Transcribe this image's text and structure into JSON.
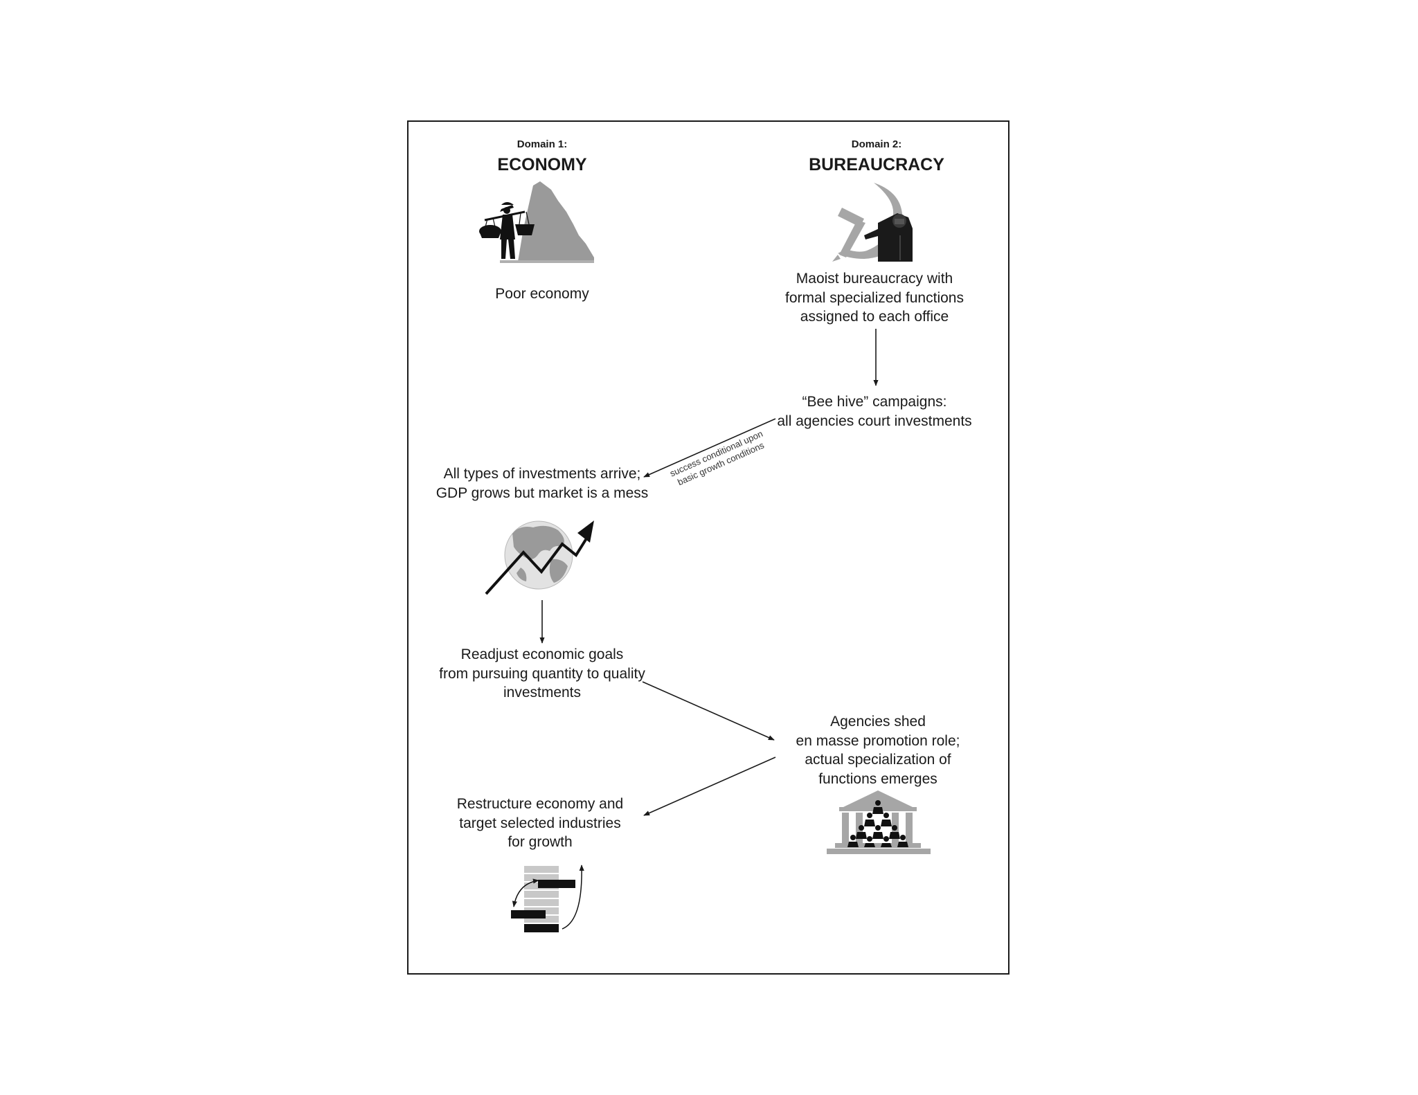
{
  "domain1": {
    "label": "Domain 1:",
    "title": "ECONOMY"
  },
  "domain2": {
    "label": "Domain 2:",
    "title": "BUREAUCRACY"
  },
  "nodes": {
    "poor_economy": [
      "Poor economy"
    ],
    "maoist_bureaucracy": [
      "Maoist bureaucracy with",
      "formal specialized functions",
      "assigned to each office"
    ],
    "bee_hive": [
      "“Bee hive” campaigns:",
      "all agencies court investments"
    ],
    "investments_arrive": [
      "All types of investments arrive;",
      "GDP grows but market is a mess"
    ],
    "readjust_goals": [
      "Readjust economic goals",
      "from pursuing quantity to quality",
      "investments"
    ],
    "agencies_shed": [
      "Agencies shed",
      "en masse promotion role;",
      "actual specialization of",
      "functions emerges"
    ],
    "restructure": [
      "Restructure economy and",
      "target selected industries",
      "for growth"
    ]
  },
  "edge_labels": {
    "bee_to_investments": [
      "success conditional upon",
      "basic growth conditions"
    ]
  },
  "icons": {
    "economy": "peasant-carrying-baskets-icon",
    "bureaucracy": "hammer-sickle-with-leader-icon",
    "growth": "globe-with-rising-arrow-icon",
    "institution": "government-building-with-people-icon",
    "industry": "restructured-bars-icon"
  },
  "colors": {
    "ink": "#1a1a1a",
    "gray": "#a6a6a6",
    "light_gray": "#c8c8c8"
  }
}
